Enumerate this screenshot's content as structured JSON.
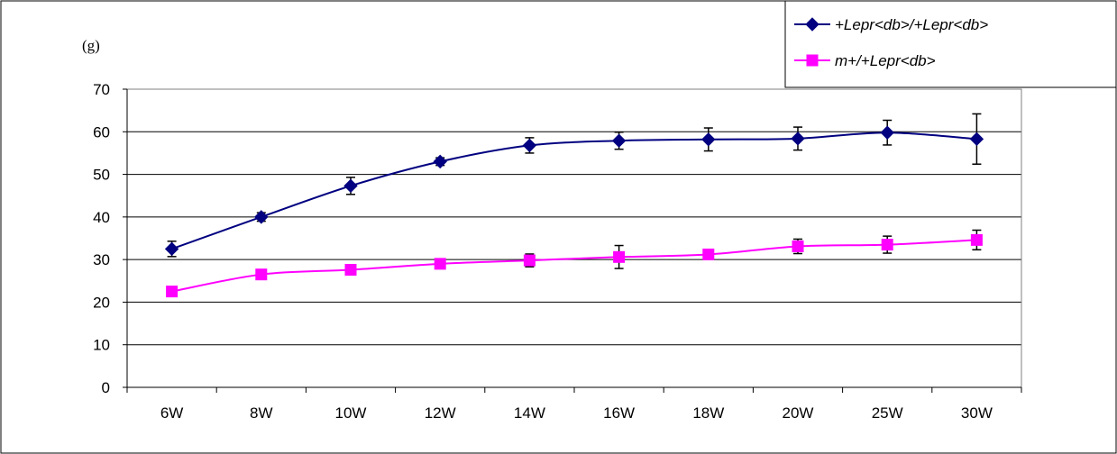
{
  "chart_data": {
    "type": "line",
    "title": "",
    "xlabel": "",
    "ylabel": "(g)",
    "categories": [
      "6W",
      "8W",
      "10W",
      "12W",
      "14W",
      "16W",
      "18W",
      "20W",
      "25W",
      "30W"
    ],
    "ylim": [
      0,
      70
    ],
    "yticks": [
      "0",
      "10",
      "20",
      "30",
      "40",
      "50",
      "60",
      "70"
    ],
    "grid": true,
    "legend_position": "top-right",
    "series": [
      {
        "name": "+Lepr<db>/+Lepr<db>",
        "color": "#000080",
        "marker": "diamond",
        "values": [
          32.5,
          40.0,
          47.3,
          53.0,
          56.8,
          57.9,
          58.2,
          58.4,
          59.8,
          58.3
        ],
        "errors": [
          1.8,
          1.0,
          2.0,
          0.9,
          1.8,
          2.0,
          2.7,
          2.7,
          2.9,
          5.9
        ]
      },
      {
        "name": "m+/+Lepr<db>",
        "color": "#ff00ff",
        "marker": "square",
        "values": [
          22.5,
          26.5,
          27.6,
          29.0,
          29.8,
          30.6,
          31.2,
          33.1,
          33.5,
          34.6
        ],
        "errors": [
          0.6,
          0.6,
          0.6,
          0.6,
          1.5,
          2.7,
          0.8,
          1.7,
          2.0,
          2.3
        ]
      }
    ]
  }
}
